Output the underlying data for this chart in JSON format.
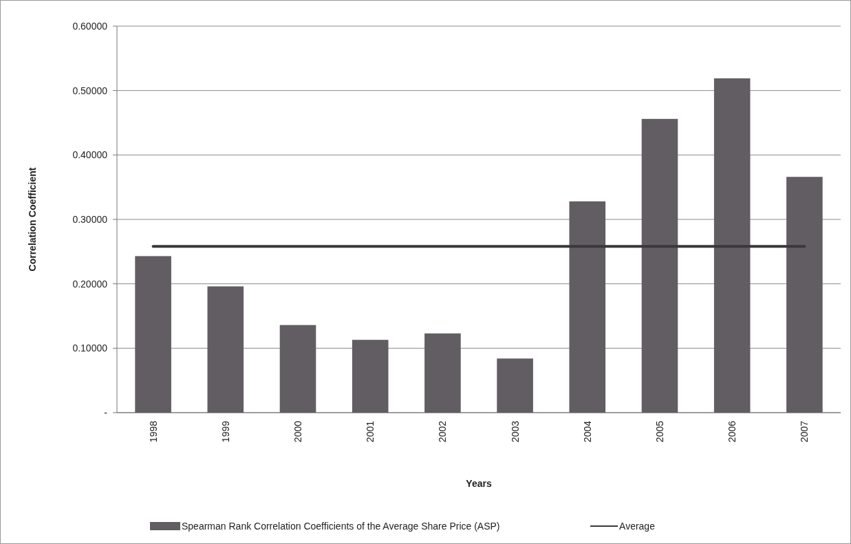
{
  "chart_data": {
    "type": "bar",
    "xlabel": "Years",
    "ylabel": "Correlation Coefficient",
    "categories": [
      "1998",
      "1999",
      "2000",
      "2001",
      "2002",
      "2003",
      "2004",
      "2005",
      "2006",
      "2007"
    ],
    "series": [
      {
        "name": "Spearman Rank Correlation Coefficients of the Average Share Price (ASP)",
        "color": "#625d63",
        "values": [
          0.243,
          0.196,
          0.136,
          0.113,
          0.123,
          0.084,
          0.328,
          0.456,
          0.519,
          0.366
        ]
      },
      {
        "name": "Average",
        "type": "line",
        "color": "#3a383c",
        "values": [
          0.258,
          0.258,
          0.258,
          0.258,
          0.258,
          0.258,
          0.258,
          0.258,
          0.258,
          0.258
        ]
      }
    ],
    "ylim": [
      0,
      0.6
    ],
    "yticks": [
      {
        "value": 0,
        "label": "-"
      },
      {
        "value": 0.1,
        "label": "0.10000"
      },
      {
        "value": 0.2,
        "label": "0.20000"
      },
      {
        "value": 0.3,
        "label": "0.30000"
      },
      {
        "value": 0.4,
        "label": "0.40000"
      },
      {
        "value": 0.5,
        "label": "0.50000"
      },
      {
        "value": 0.6,
        "label": "0.60000"
      }
    ],
    "grid": "y",
    "legend": "bottom"
  }
}
